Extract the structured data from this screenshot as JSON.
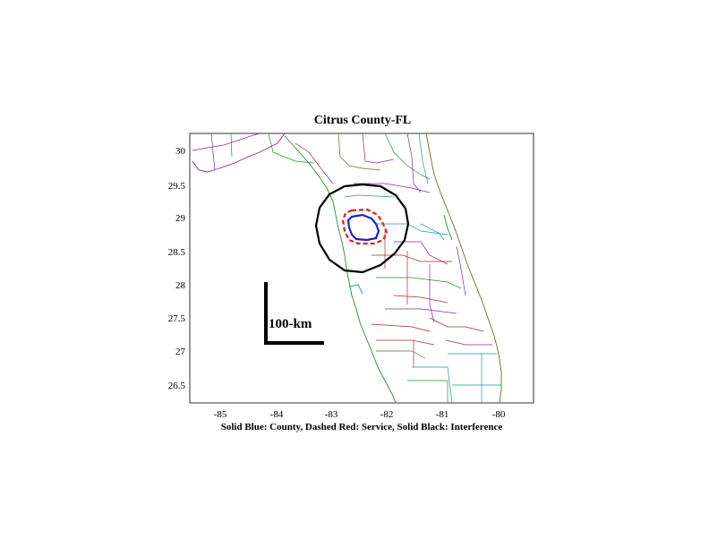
{
  "map": {
    "title": "Citrus County-FL",
    "caption": "Solid Blue: County, Dashed Red: Service, Solid Black: Interference",
    "scale_bar_label": "100-km",
    "x_ticks": [
      "-85",
      "-84",
      "-83",
      "-82",
      "-81",
      "-80"
    ],
    "y_ticks": [
      "30",
      "29.5",
      "29",
      "28.5",
      "28",
      "27.5",
      "27",
      "26.5"
    ],
    "lon_range": [
      -85.5,
      -79.4
    ],
    "lat_range": [
      26.2,
      30.3
    ],
    "legend": [
      {
        "name": "County",
        "style": "solid",
        "color": "#1f1fd0"
      },
      {
        "name": "Service",
        "style": "dashed",
        "color": "#e02020"
      },
      {
        "name": "Interference",
        "style": "solid",
        "color": "#000000"
      }
    ],
    "colors": {
      "county": "#1f1fd0",
      "service": "#e02020",
      "interference": "#000000",
      "boundaries": [
        "#8b2a8b",
        "#2a8b2a",
        "#1a9a9a",
        "#b02a2a",
        "#6a6a2a"
      ]
    }
  }
}
